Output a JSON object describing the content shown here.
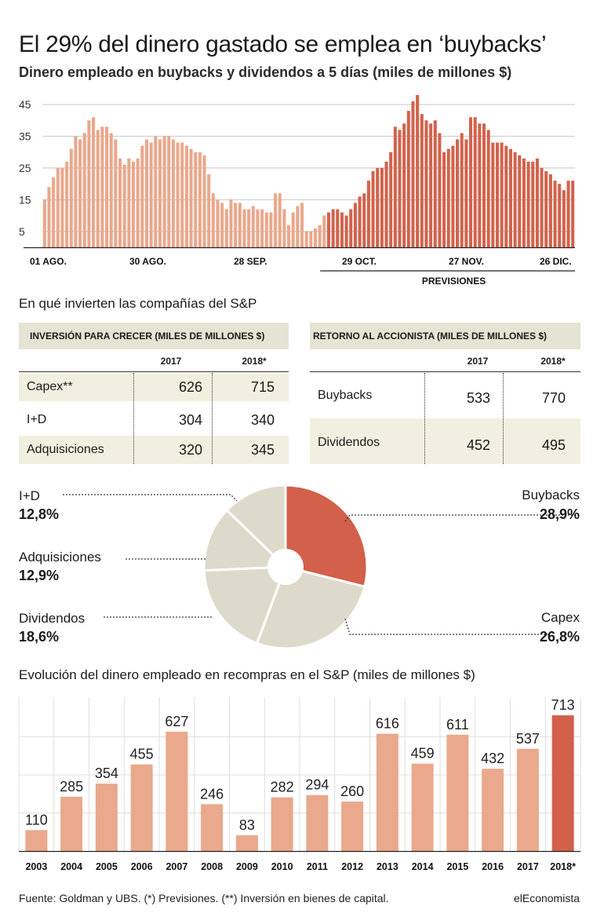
{
  "title": "El 29% del dinero gastado se emplea en ‘buybacks’",
  "subtitle": "Dinero empleado en buybacks y dividendos a 5 días (miles de millones $)",
  "chart_data": [
    {
      "type": "bar",
      "y_ticks": [
        "45",
        "35",
        "25",
        "15",
        "5"
      ],
      "ylim": [
        0,
        47.5
      ],
      "x_labels": [
        "01 AGO.",
        "30 AGO.",
        "28 SEP.",
        "29 OCT.",
        "27 NOV.",
        "26 DIC."
      ],
      "forecast_label": "PREVISIONES",
      "series": [
        {
          "values": [
            15,
            19,
            22,
            25,
            25,
            27,
            31,
            35,
            34,
            36,
            40,
            41,
            37,
            38,
            38,
            36,
            34,
            28,
            26,
            28,
            27,
            28,
            32,
            34,
            33,
            35,
            34,
            35,
            35,
            34,
            33,
            33,
            32,
            31,
            30,
            30,
            29,
            23,
            17,
            15,
            14,
            12,
            15,
            14,
            14,
            12,
            12,
            13,
            12,
            12,
            11,
            11,
            17,
            17,
            12,
            7,
            11,
            13,
            14,
            5,
            5,
            6,
            7,
            10
          ]
        },
        {
          "values": [
            11,
            12,
            12,
            11,
            10,
            12,
            14,
            16,
            17,
            21,
            24,
            25,
            25,
            27,
            30,
            38,
            37,
            39,
            43,
            46,
            48,
            42,
            40,
            39,
            40,
            36,
            30,
            31,
            32,
            34,
            36,
            34,
            41,
            41,
            39,
            39,
            37,
            33,
            33,
            33,
            32,
            31,
            30,
            29,
            28,
            27,
            27,
            28,
            25,
            24,
            23,
            21,
            20,
            18,
            21,
            21
          ]
        }
      ],
      "series_colors": [
        "#eaa88c",
        "#d2634c"
      ]
    },
    {
      "type": "pie",
      "slices": [
        {
          "label": "Buybacks",
          "pct": "28,9%",
          "value": 28.9,
          "color": "#d2604a"
        },
        {
          "label": "Capex",
          "pct": "26,8%",
          "value": 26.8,
          "color": "#dedacb"
        },
        {
          "label": "Dividendos",
          "pct": "18,6%",
          "value": 18.6,
          "color": "#dedacb"
        },
        {
          "label": "Adquisiciones",
          "pct": "12,9%",
          "value": 12.9,
          "color": "#dedacb"
        },
        {
          "label": "I+D",
          "pct": "12,8%",
          "value": 12.8,
          "color": "#dedacb"
        }
      ]
    },
    {
      "type": "bar",
      "categories": [
        "2003",
        "2004",
        "2005",
        "2006",
        "2007",
        "2008",
        "2009",
        "2010",
        "2011",
        "2012",
        "2013",
        "2014",
        "2015",
        "2016",
        "2017",
        "2018*"
      ],
      "values": [
        110,
        285,
        354,
        455,
        627,
        246,
        83,
        282,
        294,
        260,
        616,
        459,
        611,
        432,
        537,
        713
      ],
      "value_labels": [
        "110",
        "285",
        "354",
        "455",
        "627",
        "246",
        "83",
        "282",
        "294",
        "260",
        "616",
        "459",
        "611",
        "432",
        "537",
        "713"
      ],
      "colors": [
        "#eaa88c",
        "#d2604a"
      ]
    }
  ],
  "tables_section_title": "En qué invierten las compañías del S&P",
  "table_growth": {
    "header": "INVERSIÓN PARA CRECER (MILES DE MILLONES $)",
    "col1": "2017",
    "col2": "2018*",
    "rows": [
      {
        "label": "Capex**",
        "v2017": "626",
        "v2018": "715"
      },
      {
        "label": "I+D",
        "v2017": "304",
        "v2018": "340"
      },
      {
        "label": "Adquisiciones",
        "v2017": "320",
        "v2018": "345"
      }
    ]
  },
  "table_return": {
    "header": "RETORNO AL ACCIONISTA (MILES DE MILLONES $)",
    "col1": "2017",
    "col2": "2018*",
    "rows": [
      {
        "label": "Buybacks",
        "v2017": "533",
        "v2018": "770"
      },
      {
        "label": "Dividendos",
        "v2017": "452",
        "v2018": "495"
      }
    ]
  },
  "annual_title": "Evolución del dinero empleado en recompras en el S&P (miles de millones $)",
  "footer": {
    "source": "Fuente: Goldman y UBS. (*) Previsiones. (**) Inversión en bienes de capital.",
    "brand": "elEconomista"
  }
}
